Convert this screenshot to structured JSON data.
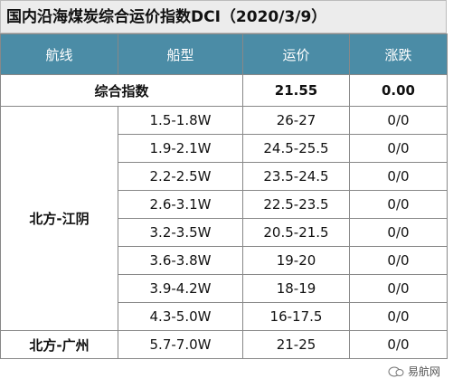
{
  "header": {
    "title": "国内沿海煤炭综合运价指数DCI（2020/3/9）"
  },
  "table": {
    "columns": [
      "航线",
      "船型",
      "运价",
      "涨跌"
    ],
    "composite": {
      "label": "综合指数",
      "price": "21.55",
      "change": "0.00"
    },
    "groups": [
      {
        "route": "北方-江阴",
        "rows": [
          [
            "1.5-1.8W",
            "26-27",
            "0/0"
          ],
          [
            "1.9-2.1W",
            "24.5-25.5",
            "0/0"
          ],
          [
            "2.2-2.5W",
            "23.5-24.5",
            "0/0"
          ],
          [
            "2.6-3.1W",
            "22.5-23.5",
            "0/0"
          ],
          [
            "3.2-3.5W",
            "20.5-21.5",
            "0/0"
          ],
          [
            "3.6-3.8W",
            "19-20",
            "0/0"
          ],
          [
            "3.9-4.2W",
            "18-19",
            "0/0"
          ],
          [
            "4.3-5.0W",
            "16-17.5",
            "0/0"
          ]
        ]
      },
      {
        "route": "北方-广州",
        "rows": [
          [
            "5.7-7.0W",
            "21-25",
            "0/0"
          ]
        ]
      }
    ]
  },
  "footer": {
    "source": "易航网"
  }
}
